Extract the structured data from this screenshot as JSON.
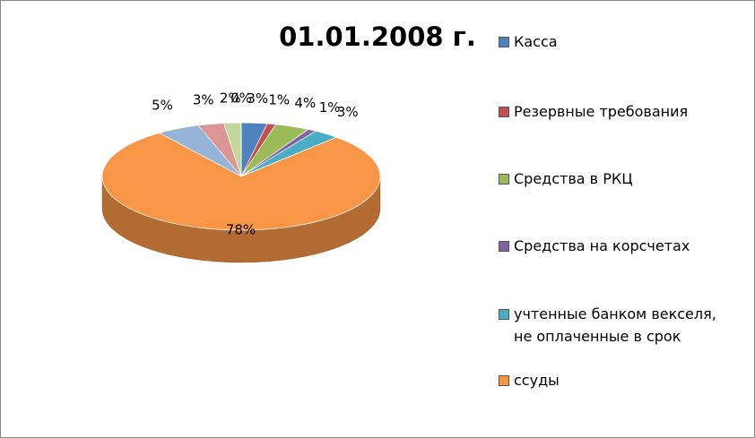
{
  "chart_data": {
    "type": "pie",
    "title": "01.01.2008 г.",
    "categories": [
      "Касса",
      "Резервные требования",
      "Средства в РКЦ",
      "Средства на корсчетах",
      "учтенные банком векселя, не оплаченные в срок",
      "ссуды",
      null,
      null,
      null,
      null
    ],
    "values": [
      3,
      1,
      4,
      1,
      3,
      78,
      5,
      3,
      2,
      0
    ],
    "value_labels": [
      "3%",
      "1%",
      "4%",
      "1%",
      "3%",
      "78%",
      "5%",
      "3%",
      "2%",
      "0%"
    ],
    "colors": [
      "#4f81bd",
      "#c0504d",
      "#9bbb59",
      "#8064a2",
      "#4bacc6",
      "#f79646",
      "#95b3d7",
      "#d99694",
      "#c3d69b",
      "#b3a2c7"
    ],
    "legend": "right"
  }
}
